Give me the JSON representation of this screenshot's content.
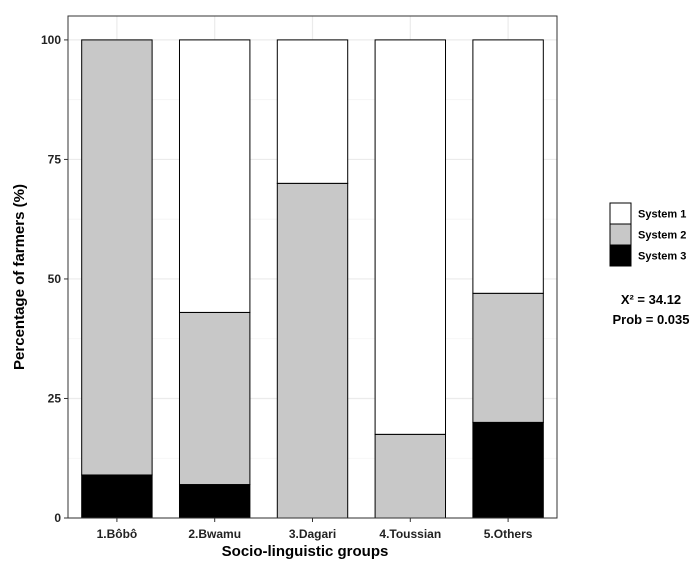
{
  "colors": {
    "System 1": "#ffffff",
    "System 2": "#c8c8c8",
    "System 3": "#000000",
    "grid": "#ebebeb",
    "panel_border": "#333333"
  },
  "chart_data": {
    "type": "bar",
    "stacked": true,
    "categories": [
      "1.Bôbô",
      "2.Bwamu",
      "3.Dagari",
      "4.Toussian",
      "5.Others"
    ],
    "series": [
      {
        "name": "System 3",
        "values": [
          9,
          7,
          0,
          0,
          20
        ]
      },
      {
        "name": "System 2",
        "values": [
          91,
          36,
          70,
          17.5,
          27
        ]
      },
      {
        "name": "System 1",
        "values": [
          0,
          57,
          30,
          82.5,
          53
        ]
      }
    ],
    "xlabel": "Socio-linguistic groups",
    "ylabel": "Percentage of farmers (%)",
    "ylim": [
      0,
      105
    ],
    "yticks": [
      0,
      25,
      50,
      75,
      100
    ],
    "grid": true,
    "legend": {
      "position": "right",
      "entries": [
        "System 1",
        "System 2",
        "System 3"
      ]
    },
    "annotations": [
      "X² = 34.12",
      "Prob = 0.035"
    ]
  }
}
